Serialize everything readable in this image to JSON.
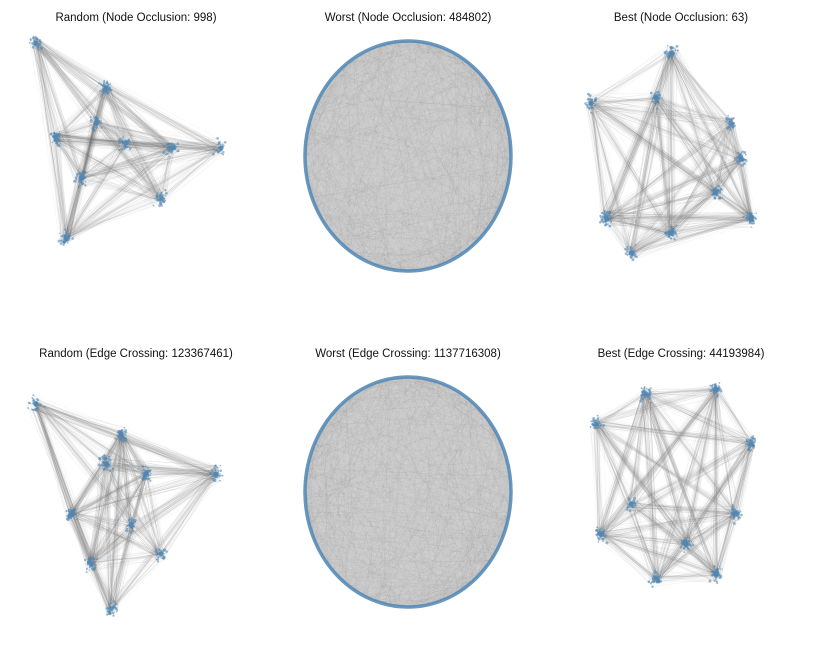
{
  "panels": [
    {
      "title": "Random (Node Occlusion: 998)",
      "layout": "random",
      "node_color": "#4f86b5",
      "edge_color": "#6e6e6e"
    },
    {
      "title": "Worst (Node Occlusion: 484802)",
      "layout": "circle",
      "node_color": "#4f86b5",
      "edge_color": "#6e6e6e"
    },
    {
      "title": "Best (Node Occlusion: 63)",
      "layout": "clustered",
      "node_color": "#4f86b5",
      "edge_color": "#6e6e6e"
    },
    {
      "title": "Random (Edge Crossing: 123367461)",
      "layout": "random",
      "node_color": "#4f86b5",
      "edge_color": "#6e6e6e"
    },
    {
      "title": "Worst (Edge Crossing: 1137716308)",
      "layout": "circle",
      "node_color": "#4f86b5",
      "edge_color": "#6e6e6e"
    },
    {
      "title": "Best (Edge Crossing: 44193984)",
      "layout": "clustered",
      "node_color": "#4f86b5",
      "edge_color": "#6e6e6e"
    }
  ]
}
